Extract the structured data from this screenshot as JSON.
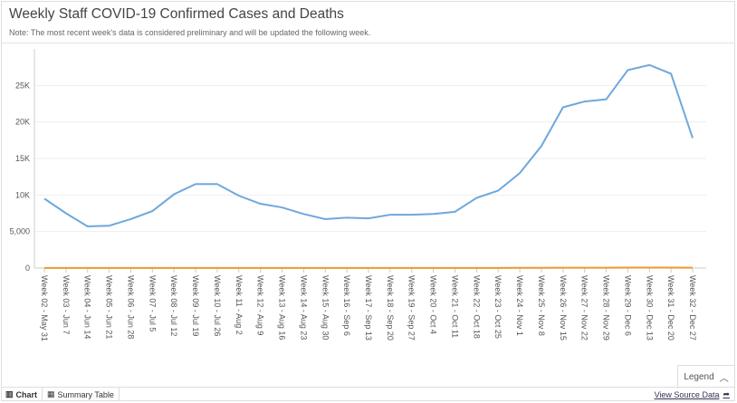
{
  "header": {
    "title": "Weekly Staff COVID-19 Confirmed Cases and Deaths",
    "note": "Note: The most recent week's data is considered preliminary and will be updated the following week."
  },
  "footer": {
    "chart_tab": "Chart",
    "table_tab": "Summary Table",
    "legend": "Legend",
    "source_link": "View Source Data"
  },
  "colors": {
    "cases": "#6fa8dc",
    "deaths": "#f0962e"
  },
  "chart_data": {
    "type": "line",
    "title": "Weekly Staff COVID-19 Confirmed Cases and Deaths",
    "categories": [
      "Week 02 - May 31",
      "Week 03 - Jun 7",
      "Week 04 - Jun 14",
      "Week 05 - Jun 21",
      "Week 06 - Jun 28",
      "Week 07 - Jul 5",
      "Week 08 - Jul 12",
      "Week 09 - Jul 19",
      "Week 10 - Jul 26",
      "Week 11 - Aug 2",
      "Week 12 - Aug 9",
      "Week 13 - Aug 16",
      "Week 14 - Aug 23",
      "Week 15 - Aug 30",
      "Week 16 - Sep 6",
      "Week 17 - Sep 13",
      "Week 18 - Sep 20",
      "Week 19 - Sep 27",
      "Week 20 - Oct 4",
      "Week 21 - Oct 11",
      "Week 22 - Oct 18",
      "Week 23 - Oct 25",
      "Week 24 - Nov 1",
      "Week 25 - Nov 8",
      "Week 26 - Nov 15",
      "Week 27 - Nov 22",
      "Week 28 - Nov 29",
      "Week 29 - Dec 6",
      "Week 30 - Dec 13",
      "Week 31 - Dec 20",
      "Week 32 - Dec 27"
    ],
    "series": [
      {
        "name": "Confirmed Cases",
        "values": [
          9500,
          7500,
          5700,
          5800,
          6700,
          7800,
          10100,
          11500,
          11500,
          9900,
          8800,
          8300,
          7400,
          6700,
          6900,
          6800,
          7300,
          7300,
          7400,
          7700,
          9600,
          10600,
          13000,
          16700,
          22000,
          22800,
          23100,
          27100,
          27800,
          26600,
          17800
        ]
      },
      {
        "name": "Deaths",
        "values": [
          20,
          15,
          10,
          10,
          10,
          10,
          15,
          20,
          20,
          15,
          15,
          15,
          10,
          10,
          10,
          10,
          10,
          10,
          10,
          10,
          15,
          20,
          25,
          30,
          40,
          45,
          50,
          60,
          65,
          60,
          40
        ]
      }
    ],
    "yticks": [
      "0",
      "5,000",
      "10K",
      "15K",
      "20K",
      "25K"
    ],
    "ytick_values": [
      0,
      5000,
      10000,
      15000,
      20000,
      25000
    ],
    "ylim": [
      0,
      30000
    ],
    "grid": true,
    "xlabel": "",
    "ylabel": ""
  }
}
